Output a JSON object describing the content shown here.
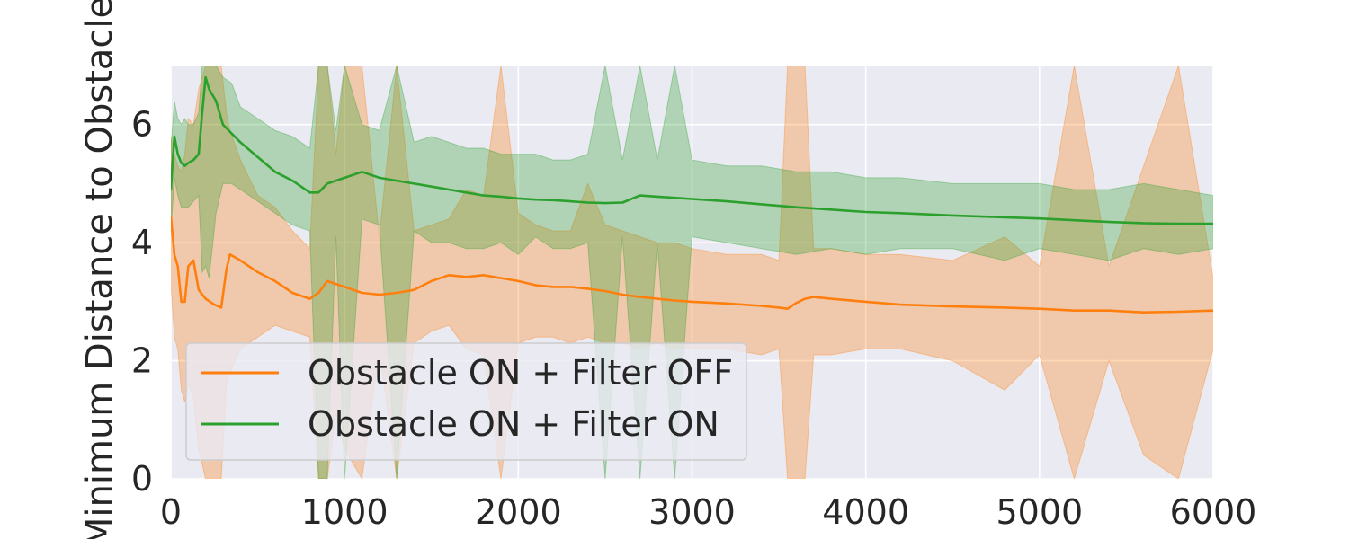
{
  "chart_data": {
    "type": "line",
    "title": "",
    "xlabel": "",
    "ylabel": "Minimum Distance to Obstacle",
    "xlim": [
      0,
      6000
    ],
    "ylim": [
      0,
      7
    ],
    "xticks": [
      0,
      1000,
      2000,
      3000,
      4000,
      5000,
      6000
    ],
    "yticks": [
      0,
      2,
      4,
      6
    ],
    "xtick_labels": [
      "0",
      "1000",
      "2000",
      "3000",
      "4000",
      "5000",
      "6000"
    ],
    "ytick_labels": [
      "0",
      "2",
      "4",
      "6"
    ],
    "grid": true,
    "legend_position": "lower-left",
    "series": [
      {
        "name": "Obstacle ON + Filter OFF",
        "color": "#ff7f0e",
        "x": [
          0,
          20,
          40,
          60,
          80,
          100,
          130,
          160,
          200,
          250,
          290,
          320,
          340,
          400,
          500,
          600,
          700,
          800,
          850,
          900,
          950,
          1000,
          1100,
          1200,
          1300,
          1400,
          1500,
          1600,
          1700,
          1800,
          1900,
          2000,
          2100,
          2200,
          2300,
          2400,
          2500,
          2600,
          2700,
          2800,
          2900,
          3000,
          3200,
          3400,
          3500,
          3550,
          3600,
          3650,
          3700,
          3800,
          4000,
          4200,
          4500,
          4800,
          5000,
          5200,
          5400,
          5600,
          5800,
          6000
        ],
        "y": [
          4.45,
          3.8,
          3.6,
          3.0,
          3.0,
          3.6,
          3.7,
          3.2,
          3.05,
          2.95,
          2.9,
          3.55,
          3.8,
          3.7,
          3.5,
          3.35,
          3.15,
          3.05,
          3.15,
          3.35,
          3.3,
          3.25,
          3.15,
          3.12,
          3.15,
          3.2,
          3.35,
          3.45,
          3.42,
          3.45,
          3.4,
          3.35,
          3.28,
          3.25,
          3.25,
          3.22,
          3.18,
          3.12,
          3.08,
          3.05,
          3.02,
          3.0,
          2.97,
          2.93,
          2.9,
          2.88,
          2.98,
          3.05,
          3.08,
          3.05,
          3.0,
          2.95,
          2.92,
          2.9,
          2.88,
          2.85,
          2.85,
          2.82,
          2.83,
          2.85
        ],
        "band_lower": [
          3.3,
          2.4,
          2.2,
          1.5,
          1.3,
          1.6,
          1.4,
          0.5,
          0.0,
          0.0,
          0.0,
          1.6,
          1.8,
          2.2,
          2.4,
          2.6,
          2.5,
          2.4,
          0.0,
          0.0,
          1.1,
          0.5,
          0.0,
          2.2,
          0.0,
          2.3,
          2.5,
          2.6,
          2.2,
          2.1,
          0.0,
          2.3,
          2.4,
          2.4,
          2.3,
          2.4,
          2.3,
          2.3,
          2.2,
          2.3,
          2.2,
          2.2,
          2.2,
          2.1,
          2.2,
          0.0,
          0.0,
          0.0,
          2.1,
          2.1,
          2.2,
          2.2,
          2.0,
          1.5,
          2.1,
          0.0,
          2.0,
          0.4,
          0.0,
          2.2
        ],
        "band_upper": [
          5.8,
          5.5,
          5.3,
          5.2,
          5.5,
          6.1,
          6.0,
          6.6,
          7.0,
          7.0,
          7.0,
          6.2,
          5.9,
          5.4,
          4.8,
          4.6,
          4.2,
          3.9,
          7.0,
          7.0,
          5.5,
          7.0,
          7.0,
          4.1,
          7.0,
          4.2,
          4.3,
          4.4,
          4.9,
          4.8,
          7.0,
          4.5,
          4.3,
          4.2,
          4.2,
          5.0,
          4.3,
          4.2,
          4.1,
          4.0,
          4.0,
          3.9,
          3.8,
          3.8,
          3.7,
          7.0,
          7.0,
          7.0,
          3.9,
          3.9,
          3.8,
          3.8,
          3.7,
          4.1,
          3.6,
          7.0,
          3.6,
          5.3,
          7.0,
          3.4
        ]
      },
      {
        "name": "Obstacle ON + Filter ON",
        "color": "#2ca02c",
        "x": [
          0,
          20,
          40,
          60,
          80,
          100,
          130,
          160,
          180,
          200,
          220,
          260,
          300,
          350,
          400,
          500,
          600,
          700,
          800,
          850,
          900,
          950,
          1000,
          1100,
          1200,
          1300,
          1400,
          1500,
          1600,
          1700,
          1800,
          1900,
          2000,
          2100,
          2200,
          2300,
          2400,
          2500,
          2600,
          2700,
          2800,
          2900,
          3000,
          3200,
          3400,
          3600,
          3800,
          4000,
          4200,
          4500,
          4800,
          5000,
          5200,
          5400,
          5600,
          5800,
          6000
        ],
        "y": [
          4.9,
          5.8,
          5.5,
          5.35,
          5.3,
          5.35,
          5.4,
          5.5,
          6.2,
          6.8,
          6.6,
          6.4,
          6.0,
          5.85,
          5.7,
          5.45,
          5.2,
          5.05,
          4.85,
          4.85,
          5.0,
          5.05,
          5.1,
          5.2,
          5.1,
          5.05,
          5.0,
          4.95,
          4.9,
          4.85,
          4.8,
          4.78,
          4.75,
          4.73,
          4.72,
          4.7,
          4.68,
          4.67,
          4.68,
          4.8,
          4.78,
          4.76,
          4.74,
          4.7,
          4.65,
          4.6,
          4.56,
          4.52,
          4.5,
          4.46,
          4.43,
          4.41,
          4.38,
          4.35,
          4.33,
          4.32,
          4.32
        ],
        "band_lower": [
          4.2,
          5.1,
          4.8,
          4.6,
          4.6,
          4.6,
          4.7,
          4.8,
          3.5,
          3.6,
          3.4,
          4.5,
          5.0,
          5.0,
          4.9,
          4.7,
          4.5,
          4.3,
          4.2,
          0.0,
          0.0,
          4.1,
          0.0,
          4.4,
          4.3,
          0.0,
          4.2,
          4.0,
          4.0,
          3.9,
          3.9,
          4.0,
          3.8,
          4.1,
          3.9,
          3.9,
          4.0,
          0.0,
          4.1,
          0.0,
          4.0,
          0.0,
          4.1,
          4.0,
          3.9,
          3.8,
          3.9,
          3.8,
          3.9,
          3.9,
          3.7,
          3.9,
          3.8,
          3.7,
          3.9,
          3.8,
          3.9
        ],
        "band_upper": [
          5.6,
          6.4,
          6.1,
          6.0,
          6.1,
          6.0,
          6.0,
          6.2,
          7.0,
          7.0,
          7.0,
          7.0,
          6.8,
          6.7,
          6.3,
          6.1,
          5.9,
          5.8,
          5.6,
          7.0,
          7.0,
          5.9,
          7.0,
          6.0,
          5.9,
          7.0,
          5.7,
          5.8,
          5.7,
          5.6,
          5.6,
          5.5,
          5.5,
          5.5,
          5.4,
          5.4,
          5.5,
          7.0,
          5.4,
          7.0,
          5.4,
          7.0,
          5.4,
          5.3,
          5.3,
          5.2,
          5.2,
          5.1,
          5.1,
          5.0,
          5.0,
          5.0,
          4.9,
          4.9,
          5.0,
          4.9,
          4.8
        ]
      }
    ]
  }
}
